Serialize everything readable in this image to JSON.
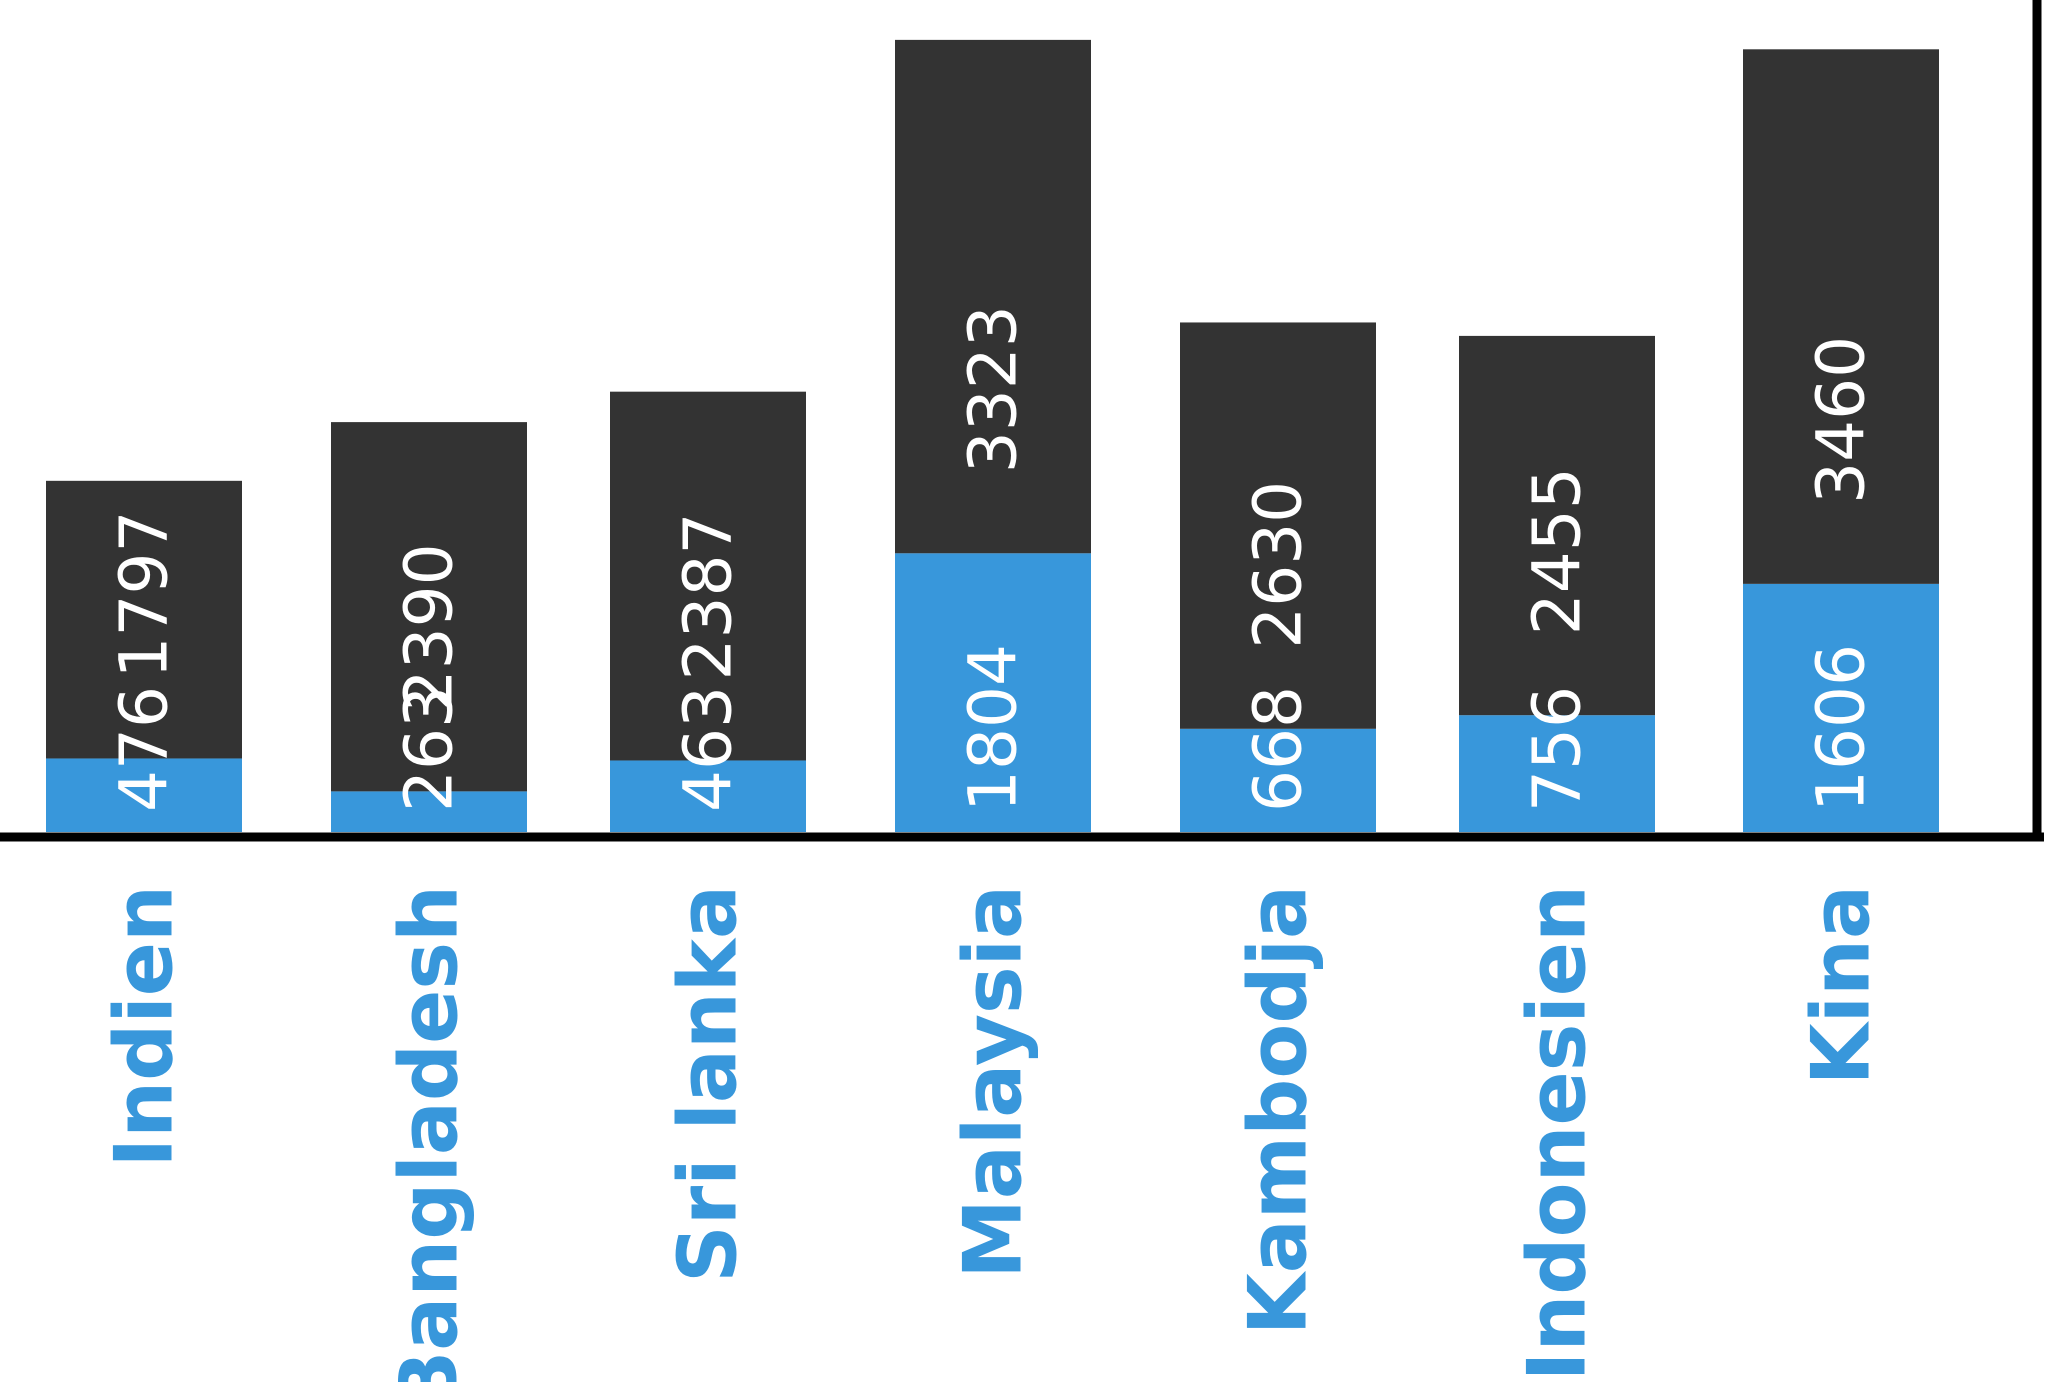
{
  "chart_data": {
    "type": "bar",
    "stacked": true,
    "categories": [
      "Indien",
      "Bangladesh",
      "Sri lanka",
      "Malaysia",
      "Kambodja",
      "Indonesien",
      "Kina"
    ],
    "series": [
      {
        "values": [
          476,
          263,
          463,
          1804,
          668,
          756,
          1606
        ],
        "color": "#3897db"
      },
      {
        "values": [
          1797,
          2390,
          2387,
          3323,
          2630,
          2455,
          3460
        ],
        "color": "#333333"
      }
    ],
    "data_labels": true,
    "category_label_color": "#3897db",
    "axis_color": "#000000",
    "grid": false,
    "legend": "none"
  }
}
